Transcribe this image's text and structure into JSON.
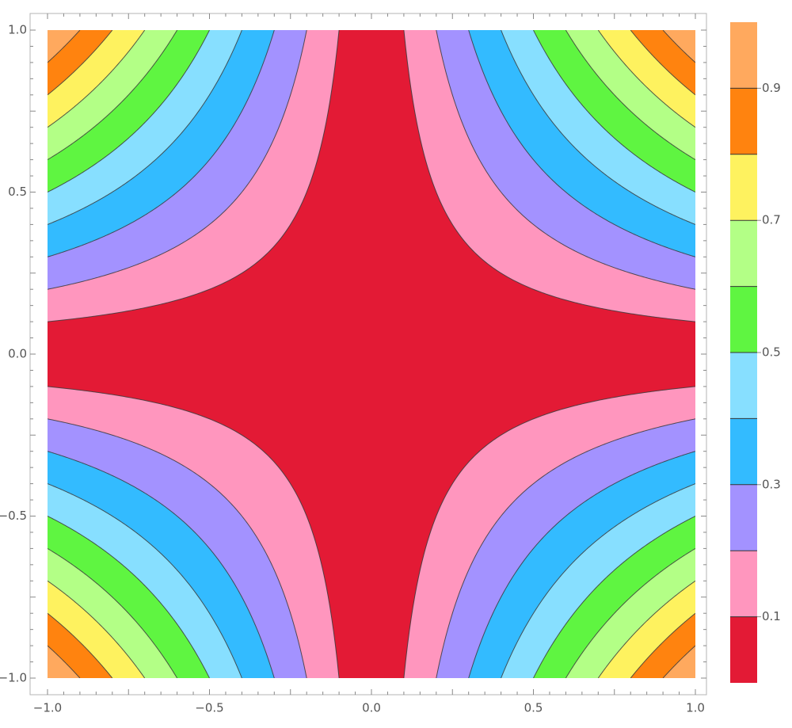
{
  "chart_data": {
    "type": "heatmap",
    "subtype": "contour",
    "title": "",
    "xlabel": "",
    "ylabel": "",
    "xlim": [
      -1.0,
      1.0
    ],
    "ylim": [
      -1.0,
      1.0
    ],
    "x_ticks": [
      "-1.0",
      "-0.5",
      "0.0",
      "0.5",
      "1.0"
    ],
    "y_ticks": [
      "-1.0",
      "-0.5",
      "0.0",
      "0.5",
      "1.0"
    ],
    "function": "|x*y|",
    "contour_levels": [
      0.1,
      0.2,
      0.3,
      0.4,
      0.5,
      0.6,
      0.7,
      0.8,
      0.9
    ],
    "band_colors": [
      "#e31a35",
      "#ff96be",
      "#a392ff",
      "#33bbff",
      "#87dfff",
      "#5ff541",
      "#b3ff86",
      "#fef25f",
      "#ff830f",
      "#ffa95e"
    ],
    "colorbar": {
      "range": [
        0,
        1
      ],
      "tick_values": [
        0.1,
        0.3,
        0.5,
        0.7,
        0.9
      ],
      "tick_labels": [
        "0.1",
        "0.3",
        "0.5",
        "0.7",
        "0.9"
      ]
    },
    "grid": false,
    "legend": "colorbar-right"
  }
}
